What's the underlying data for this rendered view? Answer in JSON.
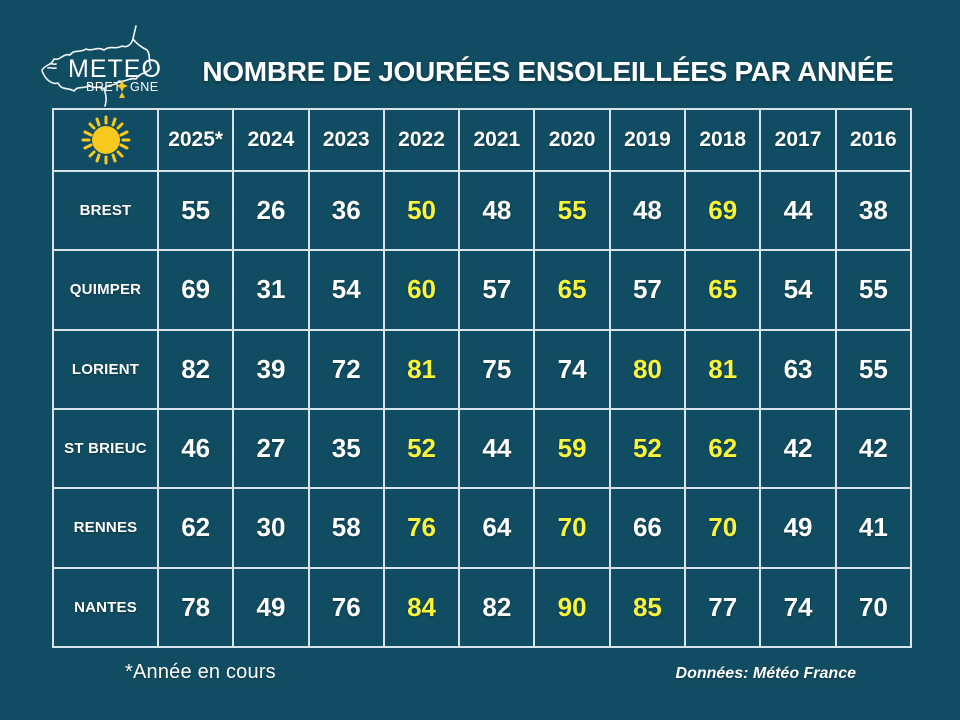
{
  "page": {
    "title": "NOMBRE DE JOURÉES ENSOLEILLÉES PAR ANNÉE",
    "footnote": "*Année en cours",
    "source": "Données: Météo France"
  },
  "logo": {
    "name": "Météo Bretagne",
    "line1": "METEO",
    "line2_left": "BRET",
    "line2_right": "GNE",
    "symbol": "ermine-icon"
  },
  "colors": {
    "background": "#114D62",
    "grid": "#D9E4EA",
    "text": "#FFFFFF",
    "highlight": "#F9F53C",
    "sun": "#F7C81E"
  },
  "table": {
    "corner_icon": "sun-icon",
    "years": [
      "2025*",
      "2024",
      "2023",
      "2022",
      "2021",
      "2020",
      "2019",
      "2018",
      "2017",
      "2016"
    ],
    "rows": [
      {
        "city": "BREST",
        "cells": [
          {
            "value": 55
          },
          {
            "value": 26
          },
          {
            "value": 36
          },
          {
            "value": 50,
            "highlight": true
          },
          {
            "value": 48
          },
          {
            "value": 55,
            "highlight": true
          },
          {
            "value": 48
          },
          {
            "value": 69,
            "highlight": true
          },
          {
            "value": 44
          },
          {
            "value": 38
          }
        ]
      },
      {
        "city": "QUIMPER",
        "cells": [
          {
            "value": 69
          },
          {
            "value": 31
          },
          {
            "value": 54
          },
          {
            "value": 60,
            "highlight": true
          },
          {
            "value": 57
          },
          {
            "value": 65,
            "highlight": true
          },
          {
            "value": 57
          },
          {
            "value": 65,
            "highlight": true
          },
          {
            "value": 54
          },
          {
            "value": 55
          }
        ]
      },
      {
        "city": "LORIENT",
        "cells": [
          {
            "value": 82
          },
          {
            "value": 39
          },
          {
            "value": 72
          },
          {
            "value": 81,
            "highlight": true
          },
          {
            "value": 75
          },
          {
            "value": 74
          },
          {
            "value": 80,
            "highlight": true
          },
          {
            "value": 81,
            "highlight": true
          },
          {
            "value": 63
          },
          {
            "value": 55
          }
        ]
      },
      {
        "city": "ST BRIEUC",
        "cells": [
          {
            "value": 46
          },
          {
            "value": 27
          },
          {
            "value": 35
          },
          {
            "value": 52,
            "highlight": true
          },
          {
            "value": 44
          },
          {
            "value": 59,
            "highlight": true
          },
          {
            "value": 52,
            "highlight": true
          },
          {
            "value": 62,
            "highlight": true
          },
          {
            "value": 42
          },
          {
            "value": 42
          }
        ]
      },
      {
        "city": "RENNES",
        "cells": [
          {
            "value": 62
          },
          {
            "value": 30
          },
          {
            "value": 58
          },
          {
            "value": 76,
            "highlight": true
          },
          {
            "value": 64
          },
          {
            "value": 70,
            "highlight": true
          },
          {
            "value": 66
          },
          {
            "value": 70,
            "highlight": true
          },
          {
            "value": 49
          },
          {
            "value": 41
          }
        ]
      },
      {
        "city": "NANTES",
        "cells": [
          {
            "value": 78
          },
          {
            "value": 49
          },
          {
            "value": 76
          },
          {
            "value": 84,
            "highlight": true
          },
          {
            "value": 82
          },
          {
            "value": 90,
            "highlight": true
          },
          {
            "value": 85,
            "highlight": true
          },
          {
            "value": 77
          },
          {
            "value": 74
          },
          {
            "value": 70
          }
        ]
      }
    ]
  },
  "chart_data": {
    "type": "table",
    "title": "NOMBRE DE JOURÉES ENSOLEILLÉES PAR ANNÉE",
    "categories": [
      "2025*",
      "2024",
      "2023",
      "2022",
      "2021",
      "2020",
      "2019",
      "2018",
      "2017",
      "2016"
    ],
    "series": [
      {
        "name": "BREST",
        "values": [
          55,
          26,
          36,
          50,
          48,
          55,
          48,
          69,
          44,
          38
        ]
      },
      {
        "name": "QUIMPER",
        "values": [
          69,
          31,
          54,
          60,
          57,
          65,
          57,
          65,
          54,
          55
        ]
      },
      {
        "name": "LORIENT",
        "values": [
          82,
          39,
          72,
          81,
          75,
          74,
          80,
          81,
          63,
          55
        ]
      },
      {
        "name": "ST BRIEUC",
        "values": [
          46,
          27,
          35,
          52,
          44,
          59,
          52,
          62,
          42,
          42
        ]
      },
      {
        "name": "RENNES",
        "values": [
          62,
          30,
          58,
          76,
          64,
          70,
          66,
          70,
          49,
          41
        ]
      },
      {
        "name": "NANTES",
        "values": [
          78,
          49,
          76,
          84,
          82,
          90,
          85,
          77,
          74,
          70
        ]
      }
    ],
    "highlighted_cells": [
      {
        "city": "BREST",
        "years": [
          "2022",
          "2020",
          "2018"
        ]
      },
      {
        "city": "QUIMPER",
        "years": [
          "2022",
          "2020",
          "2018"
        ]
      },
      {
        "city": "LORIENT",
        "years": [
          "2022",
          "2019",
          "2018"
        ]
      },
      {
        "city": "ST BRIEUC",
        "years": [
          "2022",
          "2020",
          "2019",
          "2018"
        ]
      },
      {
        "city": "RENNES",
        "years": [
          "2022",
          "2020",
          "2018"
        ]
      },
      {
        "city": "NANTES",
        "years": [
          "2022",
          "2020",
          "2019"
        ]
      }
    ],
    "notes": [
      "*Année en cours",
      "Données: Météo France"
    ]
  }
}
